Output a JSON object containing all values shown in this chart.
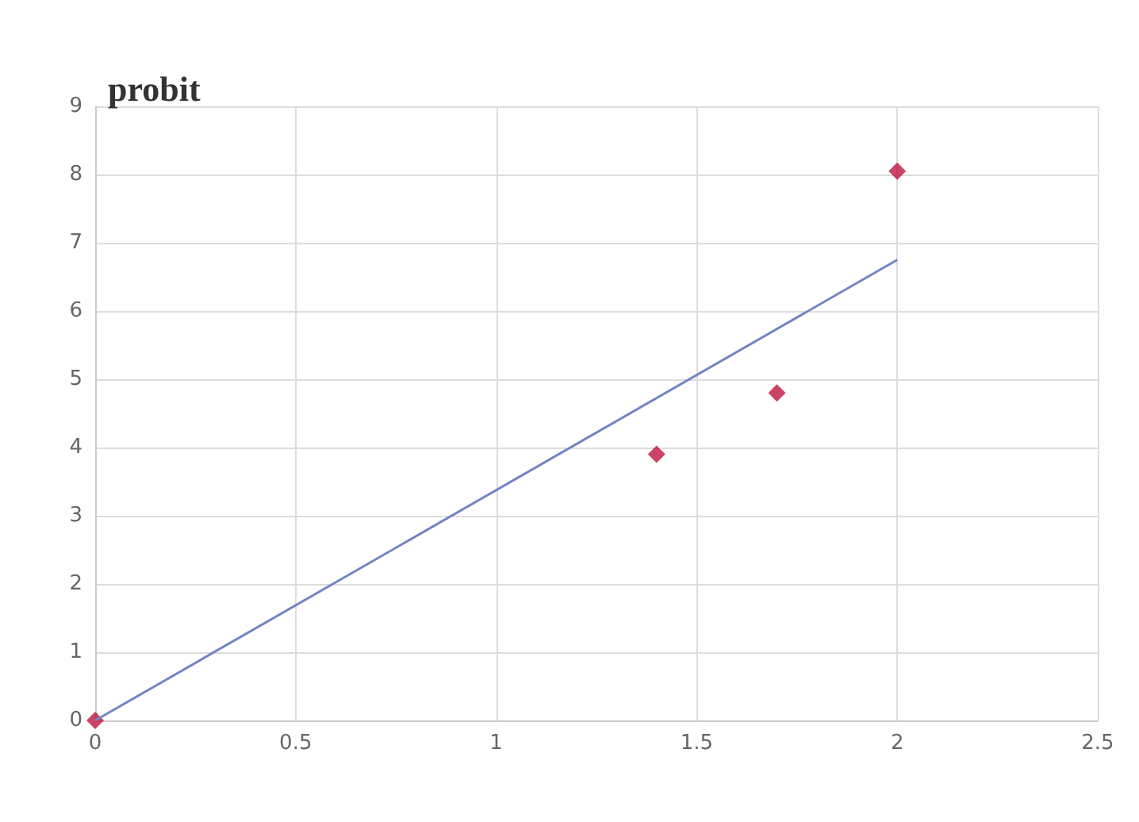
{
  "chart_data": {
    "type": "scatter",
    "ylabel": "probit",
    "series": [
      {
        "color": "#c0143c",
        "marker": "diamond",
        "x": [
          0,
          1.4,
          1.7,
          2
        ],
        "values": [
          0,
          3.9,
          4.8,
          8.05
        ]
      },
      {
        "type": "line",
        "color": "#7484c4",
        "marker": "none",
        "line_style": "solid",
        "x": [
          0,
          2
        ],
        "values": [
          0,
          6.75
        ]
      }
    ],
    "xlim": [
      0,
      2.5
    ],
    "xticks": [
      0,
      0.5,
      1,
      1.5,
      2,
      2.5
    ],
    "ylim": [
      0,
      9
    ],
    "yticks": [
      0,
      1,
      2,
      3,
      4,
      5,
      6,
      7,
      8,
      9
    ],
    "grid": true
  }
}
